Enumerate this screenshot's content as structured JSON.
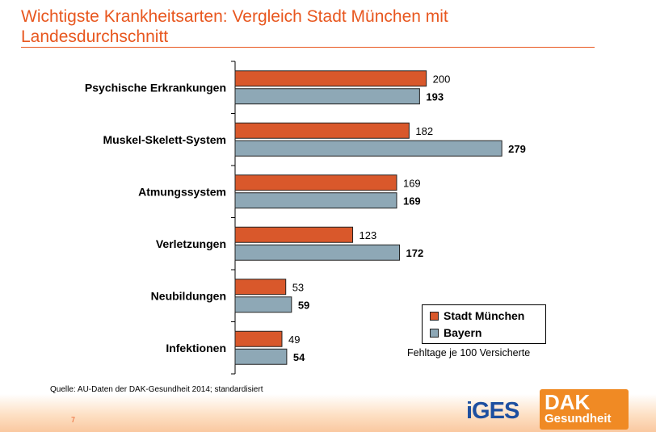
{
  "slide": {
    "title": "Wichtigste Krankheitsarten: Vergleich Stadt München mit Landesdurchschnitt",
    "source": "Quelle: AU-Daten der DAK-Gesundheit 2014; standardisiert",
    "unit_note": "Fehltage je 100 Versicherte",
    "page_number": "7",
    "logos": {
      "iges": "iGES",
      "dak_line1": "DAK",
      "dak_line2": "Gesundheit"
    }
  },
  "colors": {
    "title": "#e8571f",
    "stadt_muenchen": "#d9582b",
    "bayern": "#8ea8b6",
    "axis": "#000000"
  },
  "chart_data": {
    "type": "bar",
    "orientation": "horizontal",
    "categories": [
      "Psychische Erkrankungen",
      "Muskel-Skelett-System",
      "Atmungssystem",
      "Verletzungen",
      "Neubildungen",
      "Infektionen"
    ],
    "series": [
      {
        "name": "Stadt München",
        "values": [
          200,
          182,
          169,
          123,
          53,
          49
        ]
      },
      {
        "name": "Bayern",
        "values": [
          193,
          279,
          169,
          172,
          59,
          54
        ]
      }
    ],
    "xlim": [
      0,
      300
    ],
    "legend": "bottom-right",
    "grid": false
  }
}
